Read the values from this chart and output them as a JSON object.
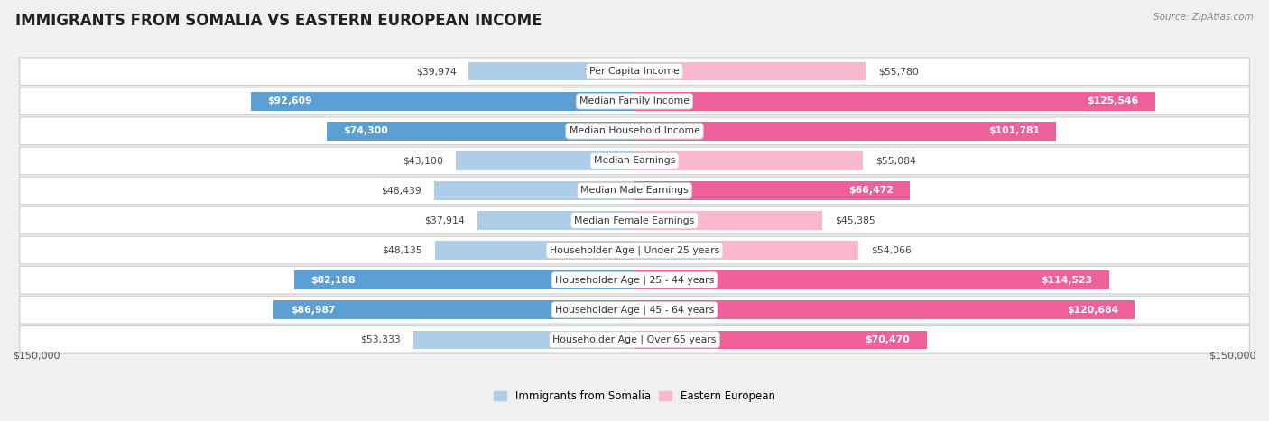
{
  "title": "IMMIGRANTS FROM SOMALIA VS EASTERN EUROPEAN INCOME",
  "source": "Source: ZipAtlas.com",
  "categories": [
    "Per Capita Income",
    "Median Family Income",
    "Median Household Income",
    "Median Earnings",
    "Median Male Earnings",
    "Median Female Earnings",
    "Householder Age | Under 25 years",
    "Householder Age | 25 - 44 years",
    "Householder Age | 45 - 64 years",
    "Householder Age | Over 65 years"
  ],
  "somalia_values": [
    39974,
    92609,
    74300,
    43100,
    48439,
    37914,
    48135,
    82188,
    86987,
    53333
  ],
  "eastern_values": [
    55780,
    125546,
    101781,
    55084,
    66472,
    45385,
    54066,
    114523,
    120684,
    70470
  ],
  "somalia_labels": [
    "$39,974",
    "$92,609",
    "$74,300",
    "$43,100",
    "$48,439",
    "$37,914",
    "$48,135",
    "$82,188",
    "$86,987",
    "$53,333"
  ],
  "eastern_labels": [
    "$55,780",
    "$125,546",
    "$101,781",
    "$55,084",
    "$66,472",
    "$45,385",
    "$54,066",
    "$114,523",
    "$120,684",
    "$70,470"
  ],
  "somalia_color_light": "#aecde8",
  "somalia_color_dark": "#5b9fd4",
  "eastern_color_light": "#f9b8cb",
  "eastern_color_dark": "#f0609a",
  "max_value": 150000,
  "x_label_left": "$150,000",
  "x_label_right": "$150,000",
  "legend_somalia": "Immigrants from Somalia",
  "legend_eastern": "Eastern European",
  "background_color": "#f0f0f0",
  "row_bg_color": "#ffffff",
  "row_border_color": "#d0d0d0",
  "title_fontsize": 12,
  "label_fontsize": 8,
  "bar_height": 0.62,
  "figsize": [
    14.06,
    4.67
  ],
  "somalia_threshold": 65000,
  "eastern_threshold": 65000
}
